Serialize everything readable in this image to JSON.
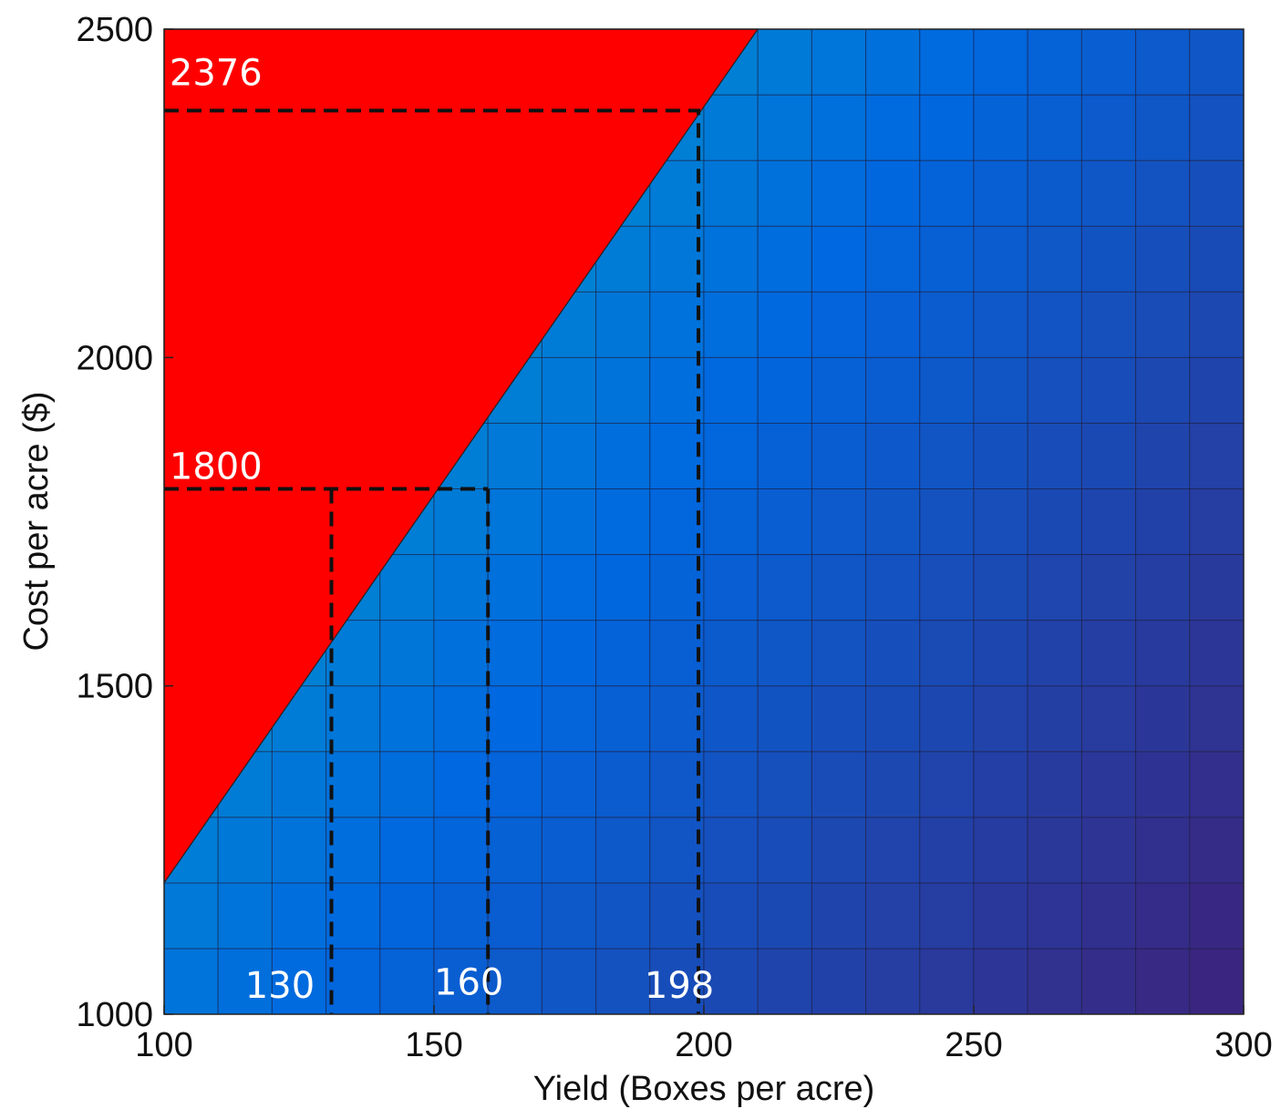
{
  "chart_data": {
    "type": "heatmap",
    "title": "",
    "xlabel": "Yield (Boxes per acre)",
    "ylabel": "Cost per acre ($)",
    "xlim": [
      100,
      300
    ],
    "ylim": [
      1000,
      2500
    ],
    "x_ticks": [
      "100",
      "150",
      "200",
      "250",
      "300"
    ],
    "y_ticks": [
      "1000",
      "1500",
      "2000",
      "2500"
    ],
    "x_edges": [
      100,
      110,
      120,
      130,
      140,
      150,
      160,
      170,
      180,
      190,
      200,
      210,
      220,
      230,
      240,
      250,
      260,
      270,
      280,
      290,
      300
    ],
    "y_edges": [
      1000,
      1100,
      1200,
      1300,
      1400,
      1500,
      1600,
      1700,
      1800,
      1900,
      2000,
      2100,
      2200,
      2300,
      2400,
      2500
    ],
    "grid": true,
    "colormap": {
      "low": "#00b8b8",
      "mid": "#0068e0",
      "high": "#3a2680"
    },
    "infeasible_region": {
      "color": "#ff0000",
      "vertices": [
        [
          100,
          2500
        ],
        [
          210,
          2500
        ],
        [
          100,
          1200
        ]
      ]
    },
    "reference_lines": [
      {
        "label": "2376",
        "cost": 2376,
        "yield": 199
      },
      {
        "label": "1800",
        "cost": 1800,
        "yield_range": [
          131,
          160
        ]
      }
    ],
    "annotations": [
      {
        "text": "2376",
        "x": 101,
        "y": 2415
      },
      {
        "text": "1800",
        "x": 101,
        "y": 1815
      },
      {
        "text": "130",
        "x": 115,
        "y": 1025
      },
      {
        "text": "160",
        "x": 150,
        "y": 1030
      },
      {
        "text": "198",
        "x": 189,
        "y": 1025
      }
    ]
  }
}
